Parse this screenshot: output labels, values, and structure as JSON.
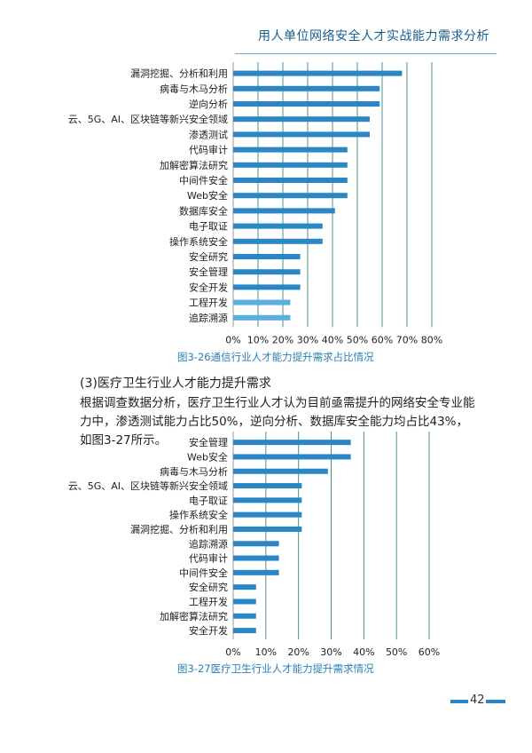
{
  "header": {
    "title": "用人单位网络安全人才实战能力需求分析"
  },
  "section": {
    "title": "(3)医疗卫生行业人才能力提升需求",
    "paragraph": "根据调查数据分析，医疗卫生行业人才认为目前亟需提升的网络安全专业能力中，渗透测试能力占比50%，逆向分析、数据库安全能力均占比43%，如图3-27所示。"
  },
  "chart_data": [
    {
      "type": "bar",
      "orientation": "horizontal",
      "caption": "图3-26通信行业人才能力提升需求占比情况",
      "categories": [
        "漏洞挖掘、分析和利用",
        "病毒与木马分析",
        "逆向分析",
        "云、5G、AI、区块链等新兴安全领域",
        "渗透测试",
        "代码审计",
        "加解密算法研究",
        "中间件安全",
        "Web安全",
        "数据库安全",
        "电子取证",
        "操作系统安全",
        "安全研究",
        "安全管理",
        "安全开发",
        "工程开发",
        "追踪溯源"
      ],
      "values": [
        0.68,
        0.59,
        0.59,
        0.55,
        0.55,
        0.46,
        0.46,
        0.46,
        0.46,
        0.41,
        0.36,
        0.36,
        0.27,
        0.27,
        0.27,
        0.23,
        0.23
      ],
      "xlim": [
        0,
        0.8
      ],
      "xticks": [
        "0%",
        "10%",
        "20%",
        "30%",
        "40%",
        "50%",
        "60%",
        "70%",
        "80%"
      ],
      "grid": true,
      "bar_color": "#2a86c5",
      "bar_color_light": "#5aaee0"
    },
    {
      "type": "bar",
      "orientation": "horizontal",
      "caption": "图3-27医疗卫生行业人才能力提升需求情况",
      "categories": [
        "安全管理",
        "Web安全",
        "病毒与木马分析",
        "云、5G、AI、区块链等新兴安全领域",
        "电子取证",
        "操作系统安全",
        "漏洞挖掘、分析和利用",
        "追踪溯源",
        "代码审计",
        "中间件安全",
        "安全研究",
        "工程开发",
        "加解密算法研究",
        "安全开发"
      ],
      "values": [
        0.36,
        0.36,
        0.29,
        0.21,
        0.21,
        0.21,
        0.21,
        0.14,
        0.14,
        0.14,
        0.07,
        0.07,
        0.07,
        0.07
      ],
      "xlim": [
        0,
        0.6
      ],
      "xticks": [
        "0%",
        "10%",
        "20%",
        "30%",
        "40%",
        "50%",
        "60%"
      ],
      "grid": true,
      "bar_color": "#2a86c5"
    }
  ],
  "footer": {
    "page_number": "42"
  },
  "colors": {
    "accent": "#2a86c5",
    "caption": "#2a7fb5",
    "grid": "#4f8f8a"
  }
}
